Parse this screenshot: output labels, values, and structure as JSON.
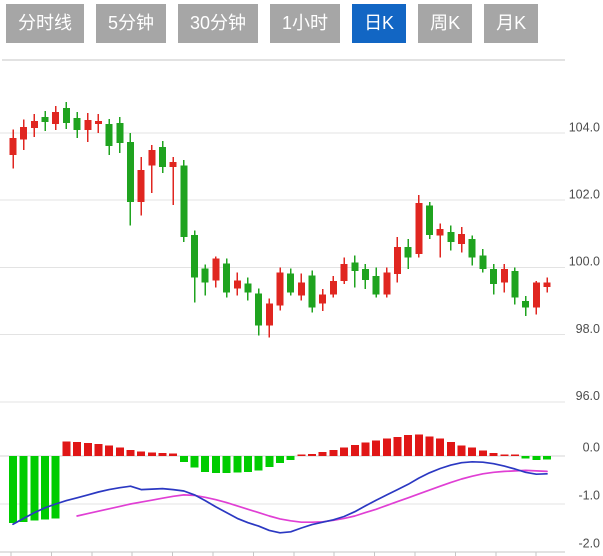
{
  "toolbar": {
    "tabs": [
      {
        "id": "timeline",
        "label": "分时线",
        "active": false
      },
      {
        "id": "5min",
        "label": "5分钟",
        "active": false
      },
      {
        "id": "30min",
        "label": "30分钟",
        "active": false
      },
      {
        "id": "1hour",
        "label": "1小时",
        "active": false
      },
      {
        "id": "daily",
        "label": "日K",
        "active": true
      },
      {
        "id": "weekly",
        "label": "周K",
        "active": false
      },
      {
        "id": "monthly",
        "label": "月K",
        "active": false
      }
    ],
    "colors": {
      "active_bg": "#1266c4",
      "inactive_bg": "#a6a6a6",
      "text": "#ffffff"
    }
  },
  "chart_data": {
    "type": "candlestick",
    "title": "",
    "legend_position": "none",
    "grid": true,
    "price_axis": {
      "side": "right",
      "ticks": [
        104.0,
        102.0,
        100.0,
        98.0,
        96.0
      ],
      "labels": [
        "104.0",
        "102.0",
        "100.0",
        "98.0",
        "96.0"
      ]
    },
    "macd_axis": {
      "side": "right",
      "ticks": [
        0.0,
        -1.0,
        -2.0
      ],
      "labels": [
        "0.0",
        "-1.0",
        "-2.0"
      ]
    },
    "colors": {
      "candle_up": "#e02620",
      "candle_down": "#1fa31f",
      "hist_up": "#e01616",
      "hist_down": "#00cc00",
      "dif_line": "#2b38c2",
      "dea_line": "#e03fd4",
      "gridline": "#e3e3e3",
      "zero_line": "#d4d4d4",
      "axis_line": "#c6c6c6",
      "axis_label": "#4d4d4d"
    },
    "candles_ohlc": [
      [
        103.35,
        104.1,
        102.95,
        103.85
      ],
      [
        103.8,
        104.4,
        103.5,
        104.18
      ],
      [
        104.15,
        104.57,
        103.88,
        104.36
      ],
      [
        104.48,
        104.66,
        104.06,
        104.33
      ],
      [
        104.27,
        104.81,
        104.09,
        104.63
      ],
      [
        104.75,
        104.93,
        104.12,
        104.3
      ],
      [
        104.45,
        104.63,
        103.85,
        104.09
      ],
      [
        104.09,
        104.6,
        103.73,
        104.39
      ],
      [
        104.27,
        104.57,
        104.0,
        104.36
      ],
      [
        104.27,
        104.42,
        103.34,
        103.61
      ],
      [
        104.3,
        104.48,
        103.4,
        103.7
      ],
      [
        103.73,
        104.0,
        101.25,
        101.94
      ],
      [
        101.94,
        103.28,
        101.55,
        102.9
      ],
      [
        103.04,
        103.64,
        102.21,
        103.49
      ],
      [
        103.58,
        103.76,
        102.81,
        102.99
      ],
      [
        102.99,
        103.28,
        101.85,
        103.13
      ],
      [
        103.04,
        103.19,
        100.75,
        100.9
      ],
      [
        100.96,
        101.1,
        98.96,
        99.7
      ],
      [
        99.97,
        100.09,
        99.16,
        99.55
      ],
      [
        99.61,
        100.33,
        99.4,
        100.27
      ],
      [
        100.12,
        100.27,
        99.1,
        99.25
      ],
      [
        99.37,
        99.85,
        99.16,
        99.61
      ],
      [
        99.52,
        99.7,
        99.01,
        99.25
      ],
      [
        99.22,
        99.37,
        97.97,
        98.27
      ],
      [
        98.27,
        99.07,
        97.91,
        98.93
      ],
      [
        98.87,
        100.0,
        98.72,
        99.85
      ],
      [
        99.82,
        99.97,
        99.16,
        99.25
      ],
      [
        99.16,
        99.82,
        99.01,
        99.55
      ],
      [
        99.76,
        99.91,
        98.66,
        98.81
      ],
      [
        98.92,
        99.35,
        98.7,
        99.2
      ],
      [
        99.2,
        99.75,
        99.1,
        99.6
      ],
      [
        99.6,
        100.3,
        99.5,
        100.1
      ],
      [
        100.15,
        100.36,
        99.4,
        99.9
      ],
      [
        99.95,
        100.1,
        99.35,
        99.62
      ],
      [
        99.75,
        100.0,
        99.1,
        99.2
      ],
      [
        99.2,
        100.0,
        99.1,
        99.85
      ],
      [
        99.8,
        100.9,
        99.55,
        100.6
      ],
      [
        100.6,
        100.85,
        99.95,
        100.3
      ],
      [
        100.4,
        102.16,
        100.3,
        101.92
      ],
      [
        101.84,
        101.95,
        100.85,
        100.96
      ],
      [
        100.95,
        101.3,
        100.3,
        101.15
      ],
      [
        101.05,
        101.25,
        100.5,
        100.75
      ],
      [
        100.7,
        101.2,
        100.45,
        101.0
      ],
      [
        100.85,
        100.95,
        100.05,
        100.3
      ],
      [
        100.35,
        100.55,
        99.85,
        99.95
      ],
      [
        99.95,
        100.1,
        99.2,
        99.5
      ],
      [
        99.55,
        100.1,
        99.25,
        99.95
      ],
      [
        99.9,
        100.0,
        98.9,
        99.1
      ],
      [
        99.0,
        99.15,
        98.55,
        98.8
      ],
      [
        98.8,
        99.6,
        98.6,
        99.55
      ],
      [
        99.42,
        99.7,
        99.25,
        99.55
      ]
    ],
    "macd": {
      "histogram": [
        -1.4,
        -1.37,
        -1.34,
        -1.32,
        -1.3,
        0.3,
        0.29,
        0.27,
        0.25,
        0.22,
        0.18,
        0.12,
        0.09,
        0.07,
        0.06,
        0.05,
        -0.12,
        -0.24,
        -0.33,
        -0.35,
        -0.35,
        -0.34,
        -0.33,
        -0.3,
        -0.23,
        -0.15,
        -0.08,
        0.02,
        0.04,
        0.08,
        0.13,
        0.18,
        0.23,
        0.28,
        0.32,
        0.36,
        0.4,
        0.44,
        0.45,
        0.41,
        0.36,
        0.29,
        0.22,
        0.18,
        0.11,
        0.06,
        0.03,
        0.02,
        -0.05,
        -0.08,
        -0.07
      ],
      "dif": [
        -1.42,
        -1.3,
        -1.18,
        -1.08,
        -1.0,
        -0.93,
        -0.87,
        -0.81,
        -0.75,
        -0.7,
        -0.66,
        -0.63,
        -0.7,
        -0.69,
        -0.68,
        -0.7,
        -0.73,
        -0.81,
        -0.93,
        -1.06,
        -1.18,
        -1.3,
        -1.39,
        -1.46,
        -1.55,
        -1.6,
        -1.58,
        -1.5,
        -1.43,
        -1.38,
        -1.33,
        -1.26,
        -1.16,
        -1.04,
        -0.92,
        -0.81,
        -0.7,
        -0.59,
        -0.46,
        -0.35,
        -0.26,
        -0.19,
        -0.14,
        -0.12,
        -0.13,
        -0.16,
        -0.21,
        -0.27,
        -0.34,
        -0.38,
        -0.37
      ],
      "dea": [
        null,
        null,
        null,
        null,
        null,
        null,
        -1.25,
        -1.2,
        -1.15,
        -1.1,
        -1.05,
        -1.0,
        -0.96,
        -0.92,
        -0.88,
        -0.84,
        -0.81,
        -0.82,
        -0.86,
        -0.91,
        -0.97,
        -1.04,
        -1.11,
        -1.18,
        -1.25,
        -1.31,
        -1.35,
        -1.38,
        -1.38,
        -1.37,
        -1.34,
        -1.3,
        -1.25,
        -1.18,
        -1.11,
        -1.03,
        -0.95,
        -0.87,
        -0.79,
        -0.71,
        -0.63,
        -0.55,
        -0.48,
        -0.42,
        -0.37,
        -0.34,
        -0.32,
        -0.31,
        -0.3,
        -0.31,
        -0.32
      ]
    }
  }
}
